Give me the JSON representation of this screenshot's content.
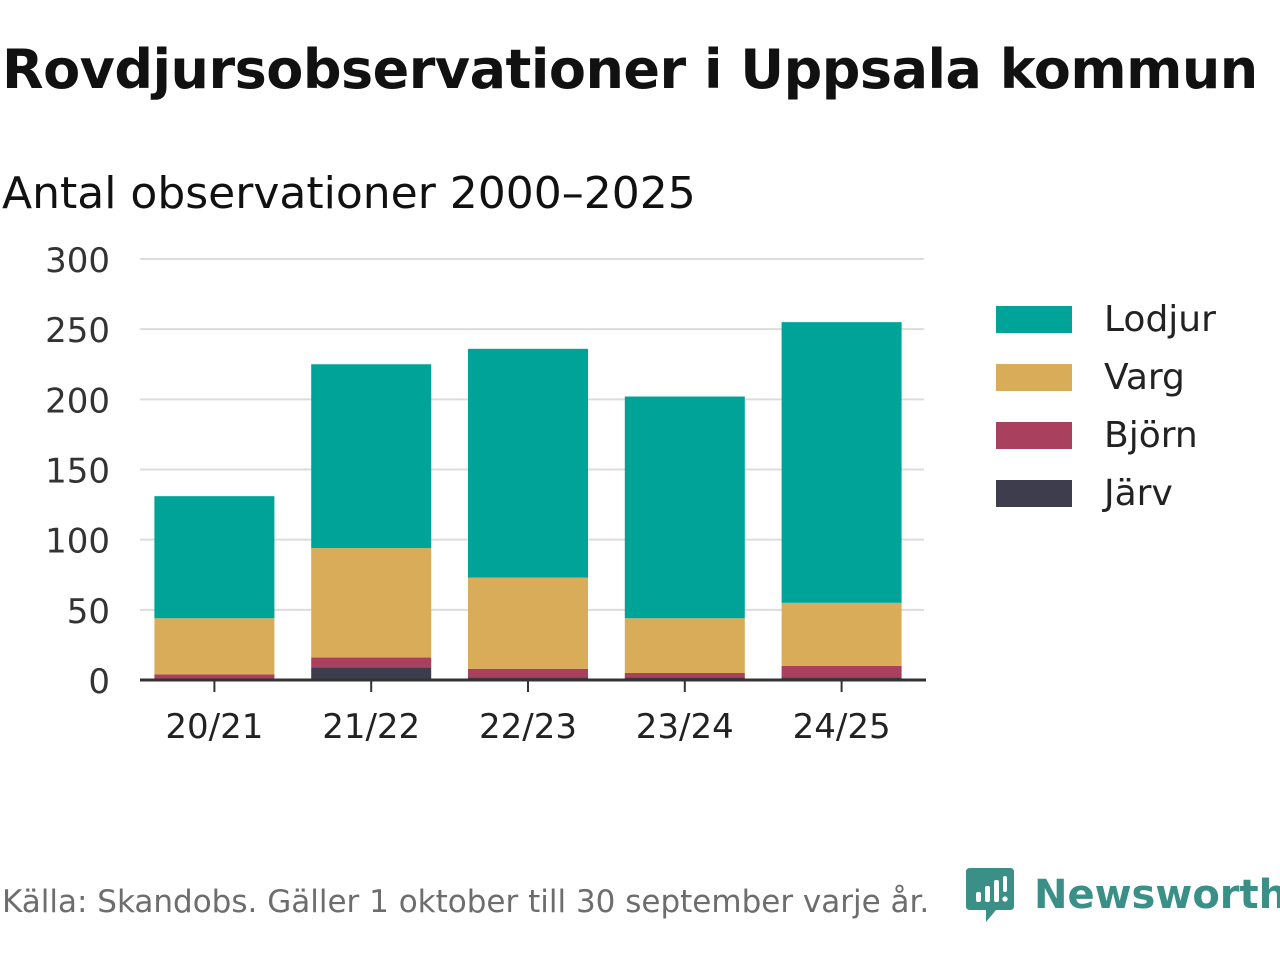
{
  "title": "Rovdjursobservationer i Uppsala kommun",
  "subtitle": "Antal observationer 2000–2025",
  "source": "Källa: Skandobs. Gäller 1 oktober till 30 september varje år.",
  "brand": "Newsworthy",
  "chart_data": {
    "type": "bar",
    "stacked": true,
    "categories": [
      "20/21",
      "21/22",
      "22/23",
      "23/24",
      "24/25"
    ],
    "series": [
      {
        "name": "Järv",
        "color": "#3d3d4e",
        "values": [
          1,
          9,
          2,
          2,
          2
        ]
      },
      {
        "name": "Björn",
        "color": "#a8405e",
        "values": [
          3,
          7,
          6,
          3,
          8
        ]
      },
      {
        "name": "Varg",
        "color": "#d9ac5a",
        "values": [
          40,
          78,
          65,
          39,
          45
        ]
      },
      {
        "name": "Lodjur",
        "color": "#00a398",
        "values": [
          87,
          131,
          163,
          158,
          200
        ]
      }
    ],
    "ylim": [
      0,
      300
    ],
    "yticks": [
      0,
      50,
      100,
      150,
      200,
      250,
      300
    ],
    "grid": true,
    "legend_position": "right",
    "legend_order": [
      "Lodjur",
      "Varg",
      "Björn",
      "Järv"
    ]
  }
}
